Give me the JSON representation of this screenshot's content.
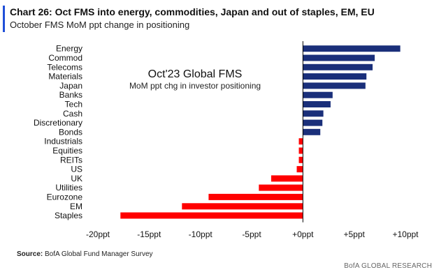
{
  "header": {
    "title": "Chart 26: Oct FMS into energy, commodities, Japan and out of staples, EM, EU",
    "subtitle": "October FMS MoM ppt change in positioning"
  },
  "footer": {
    "source_label": "Source:",
    "source_text": "BofA Global Fund Manager Survey",
    "brand": "BofA GLOBAL RESEARCH"
  },
  "colors": {
    "positive": "#1a2f7a",
    "negative": "#ff0000",
    "accent": "#1f4fd8"
  },
  "chart_data": {
    "type": "bar",
    "orientation": "horizontal",
    "title": "Oct'23 Global FMS",
    "subtitle": "MoM ppt chg in investor positioning",
    "xlabel": "",
    "ylabel": "",
    "categories": [
      "Energy",
      "Commod",
      "Telecoms",
      "Materials",
      "Japan",
      "Banks",
      "Tech",
      "Cash",
      "Discretionary",
      "Bonds",
      "Industrials",
      "Equities",
      "REITs",
      "US",
      "UK",
      "Utilities",
      "Eurozone",
      "EM",
      "Staples"
    ],
    "values": [
      9.5,
      7.0,
      6.8,
      6.2,
      6.1,
      2.9,
      2.7,
      2.0,
      1.9,
      1.7,
      -0.4,
      -0.4,
      -0.4,
      -0.6,
      -3.1,
      -4.3,
      -9.2,
      -11.8,
      -17.8
    ],
    "xlim": [
      -20,
      10
    ],
    "xticks": [
      -20,
      -15,
      -10,
      -5,
      0,
      5,
      10
    ],
    "xtick_labels": [
      "-20ppt",
      "-15ppt",
      "-10ppt",
      "-5ppt",
      "+0ppt",
      "+5ppt",
      "+10ppt"
    ],
    "grid": false,
    "legend": "none"
  }
}
